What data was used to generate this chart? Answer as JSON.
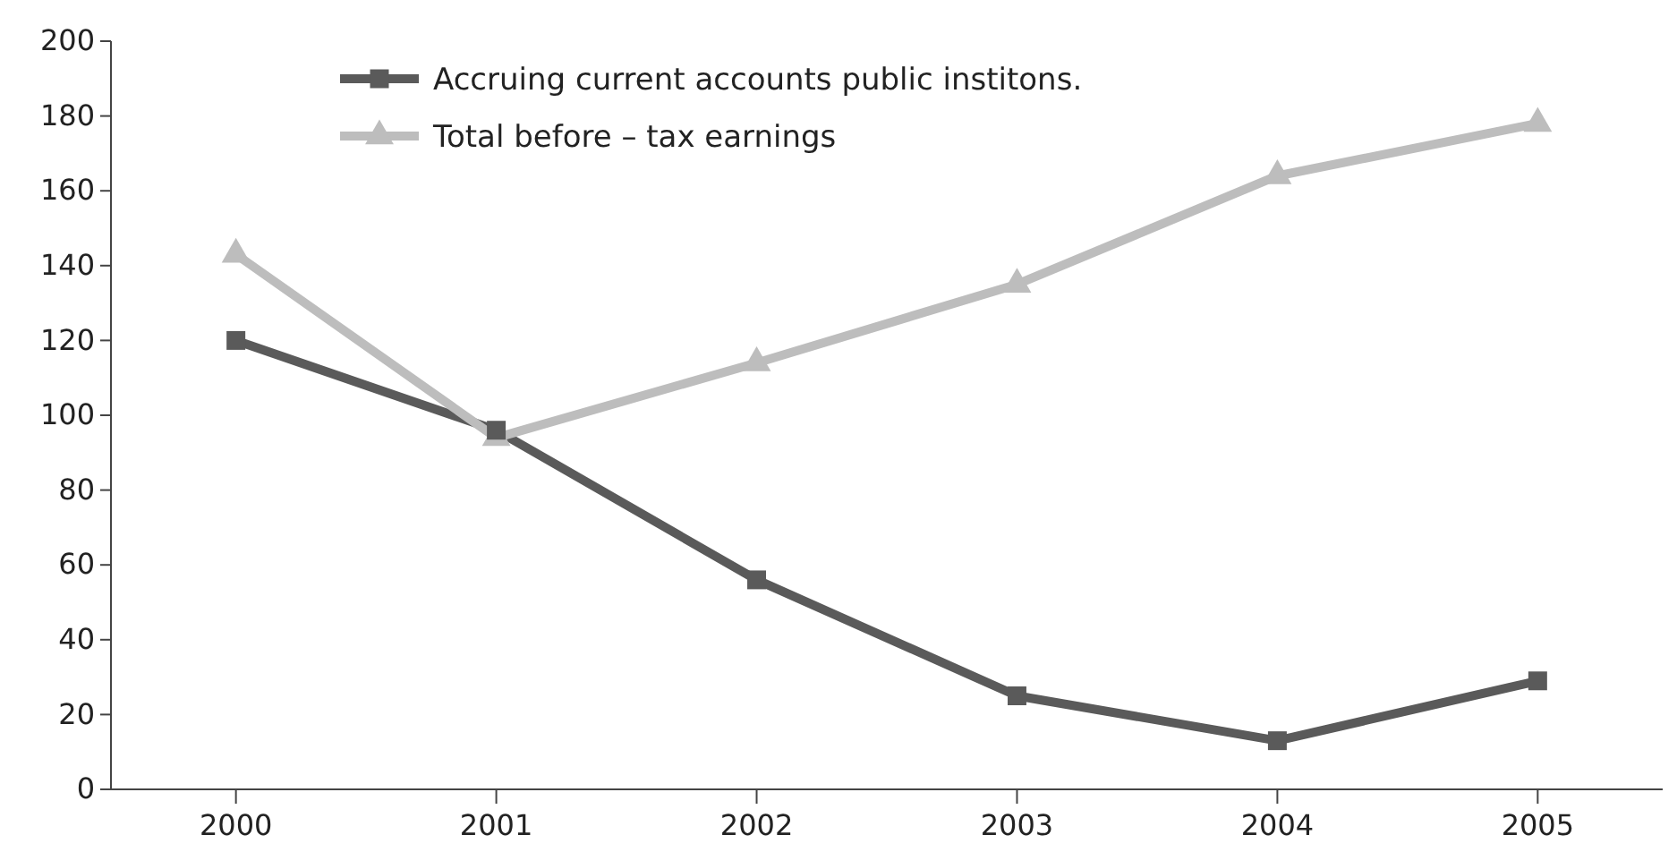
{
  "chart_data": {
    "type": "line",
    "categories": [
      "2000",
      "2001",
      "2002",
      "2003",
      "2004",
      "2005"
    ],
    "series": [
      {
        "name": "Accruing current accounts public institons.",
        "color": "#5a5a5a",
        "marker": "square",
        "values": [
          120,
          96,
          56,
          25,
          13,
          29
        ]
      },
      {
        "name": "Total before – tax earnings",
        "color": "#bdbdbd",
        "marker": "triangle",
        "values": [
          143,
          94,
          114,
          135,
          164,
          178
        ]
      }
    ],
    "ylim": [
      0,
      200
    ],
    "yticks": [
      0,
      20,
      40,
      60,
      80,
      100,
      120,
      140,
      160,
      180,
      200
    ],
    "legend": "top left",
    "grid": false,
    "line_style": "solid"
  }
}
